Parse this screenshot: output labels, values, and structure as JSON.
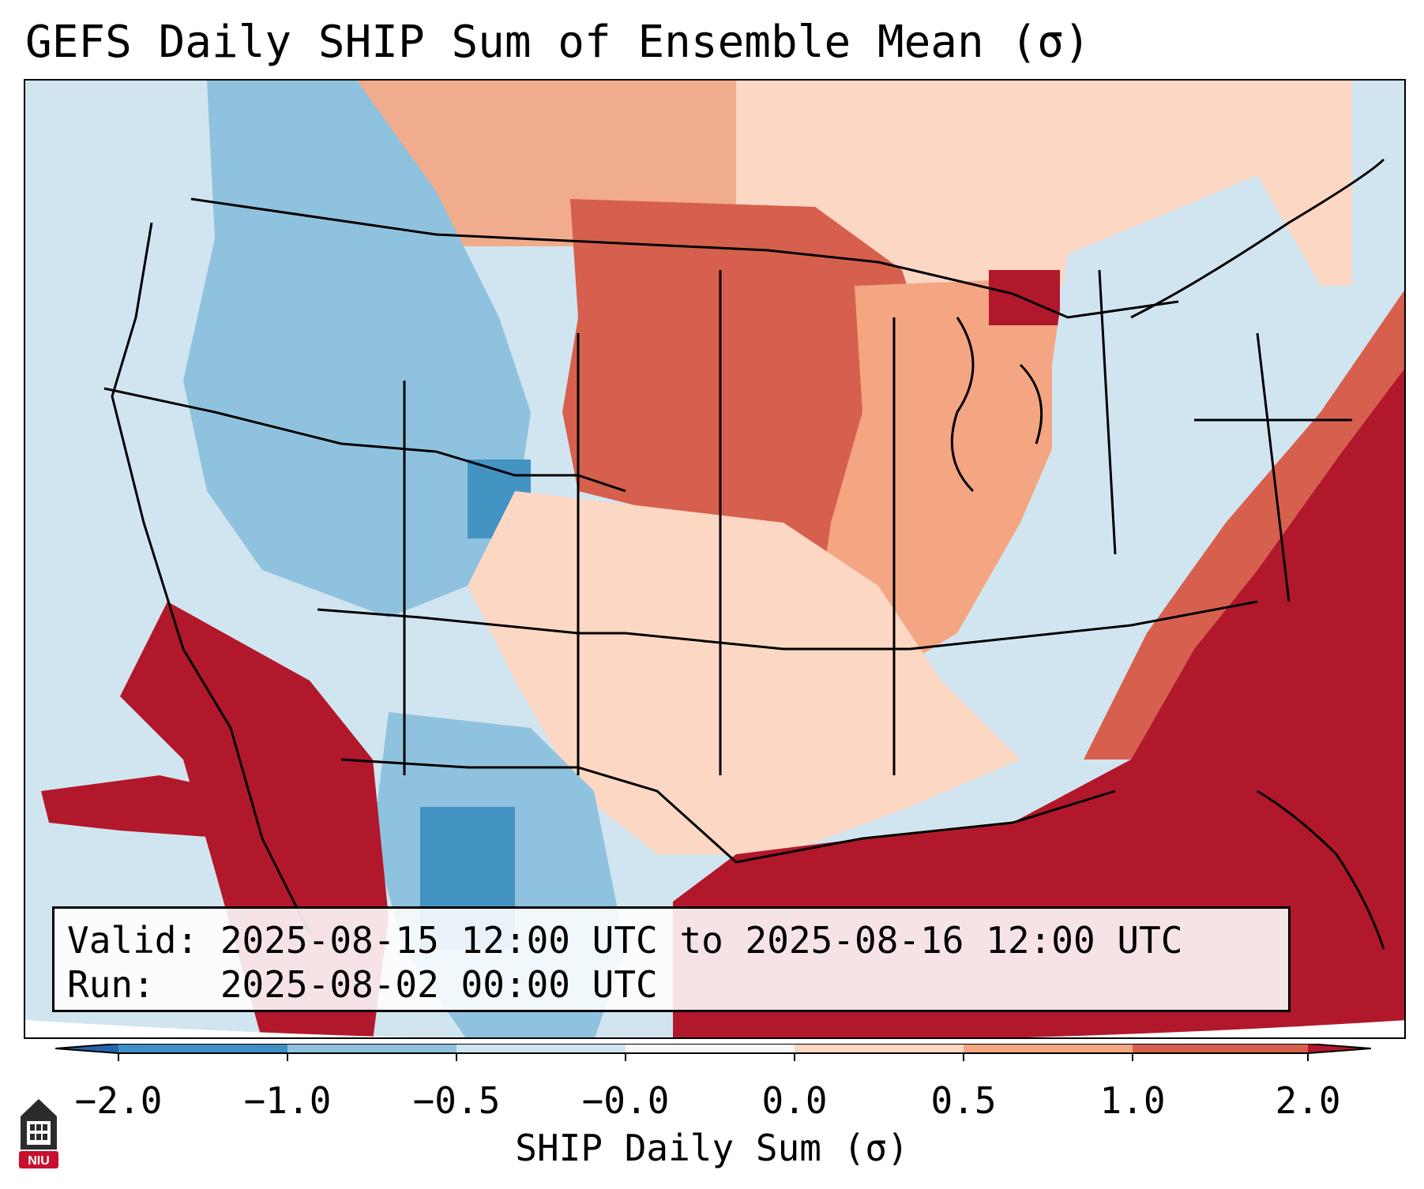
{
  "title": "GEFS Daily SHIP Sum of Ensemble Mean (σ)",
  "info": {
    "valid": "Valid: 2025-08-15 12:00 UTC to 2025-08-16 12:00 UTC",
    "run": "Run:   2025-08-02 00:00 UTC"
  },
  "colorbar": {
    "label": "SHIP Daily Sum (σ)",
    "ticks": [
      "−2.0",
      "−1.0",
      "−0.5",
      "−0.0",
      "0.0",
      "0.5",
      "1.0",
      "2.0"
    ],
    "colors": [
      "#3f8fc4",
      "#8fc2de",
      "#d1e5f0",
      "#f7f7f7",
      "#fbd7c4",
      "#f4a582",
      "#d6604d",
      "#b2182b"
    ],
    "under_color": "#2166ac",
    "over_color": "#b2182b"
  },
  "map_fill_colors": {
    "ocean_pacific": "#d1e5f0",
    "west_interior": "#8fc2de",
    "plains": "#d6604d",
    "midwest": "#f4a582",
    "northeast": "#d1e5f0",
    "atlantic_gulf": "#b2182b",
    "south": "#fbd7c4",
    "mexico_north": "#8fc2de",
    "mexico_west": "#b2182b"
  },
  "logo": {
    "text": "NIU",
    "icon": "niu-tower-icon"
  }
}
